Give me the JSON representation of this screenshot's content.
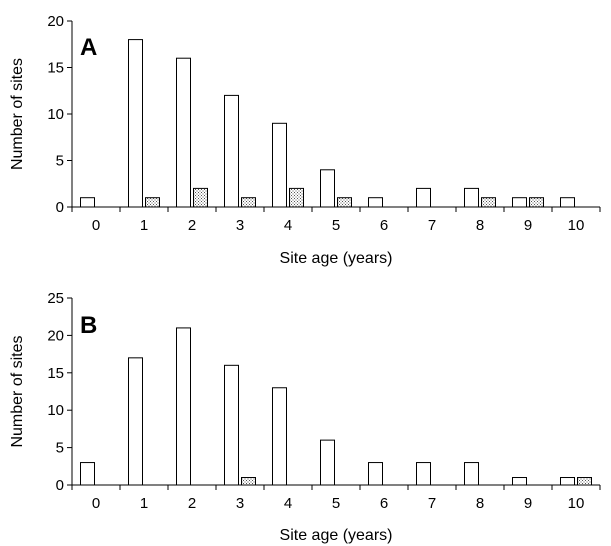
{
  "chart_data": [
    {
      "type": "bar",
      "panel_label": "A",
      "categories": [
        "0",
        "1",
        "2",
        "3",
        "4",
        "5",
        "6",
        "7",
        "8",
        "9",
        "10"
      ],
      "series": [
        {
          "values": [
            1,
            18,
            16,
            12,
            9,
            4,
            1,
            2,
            2,
            1,
            1
          ],
          "fill": "#ffffff"
        },
        {
          "values": [
            0,
            1,
            2,
            1,
            2,
            1,
            0,
            0,
            1,
            1,
            0
          ],
          "fill": "#dcdcdc",
          "pattern": "dotted"
        }
      ],
      "xlabel": "Site age (years)",
      "ylabel": "Number of sites",
      "ylim": [
        0,
        20
      ],
      "yticks": [
        "0",
        "5",
        "10",
        "15",
        "20"
      ],
      "grid": false,
      "legend": "none"
    },
    {
      "type": "bar",
      "panel_label": "B",
      "categories": [
        "0",
        "1",
        "2",
        "3",
        "4",
        "5",
        "6",
        "7",
        "8",
        "9",
        "10"
      ],
      "series": [
        {
          "values": [
            3,
            17,
            21,
            16,
            13,
            6,
            3,
            3,
            3,
            1,
            1
          ],
          "fill": "#ffffff"
        },
        {
          "values": [
            0,
            0,
            0,
            1,
            0,
            0,
            0,
            0,
            0,
            0,
            1
          ],
          "fill": "#dcdcdc",
          "pattern": "dotted"
        }
      ],
      "xlabel": "Site age (years)",
      "ylabel": "Number of sites",
      "ylim": [
        0,
        25
      ],
      "yticks": [
        "0",
        "5",
        "10",
        "15",
        "20",
        "25"
      ],
      "grid": false,
      "legend": "none"
    }
  ]
}
